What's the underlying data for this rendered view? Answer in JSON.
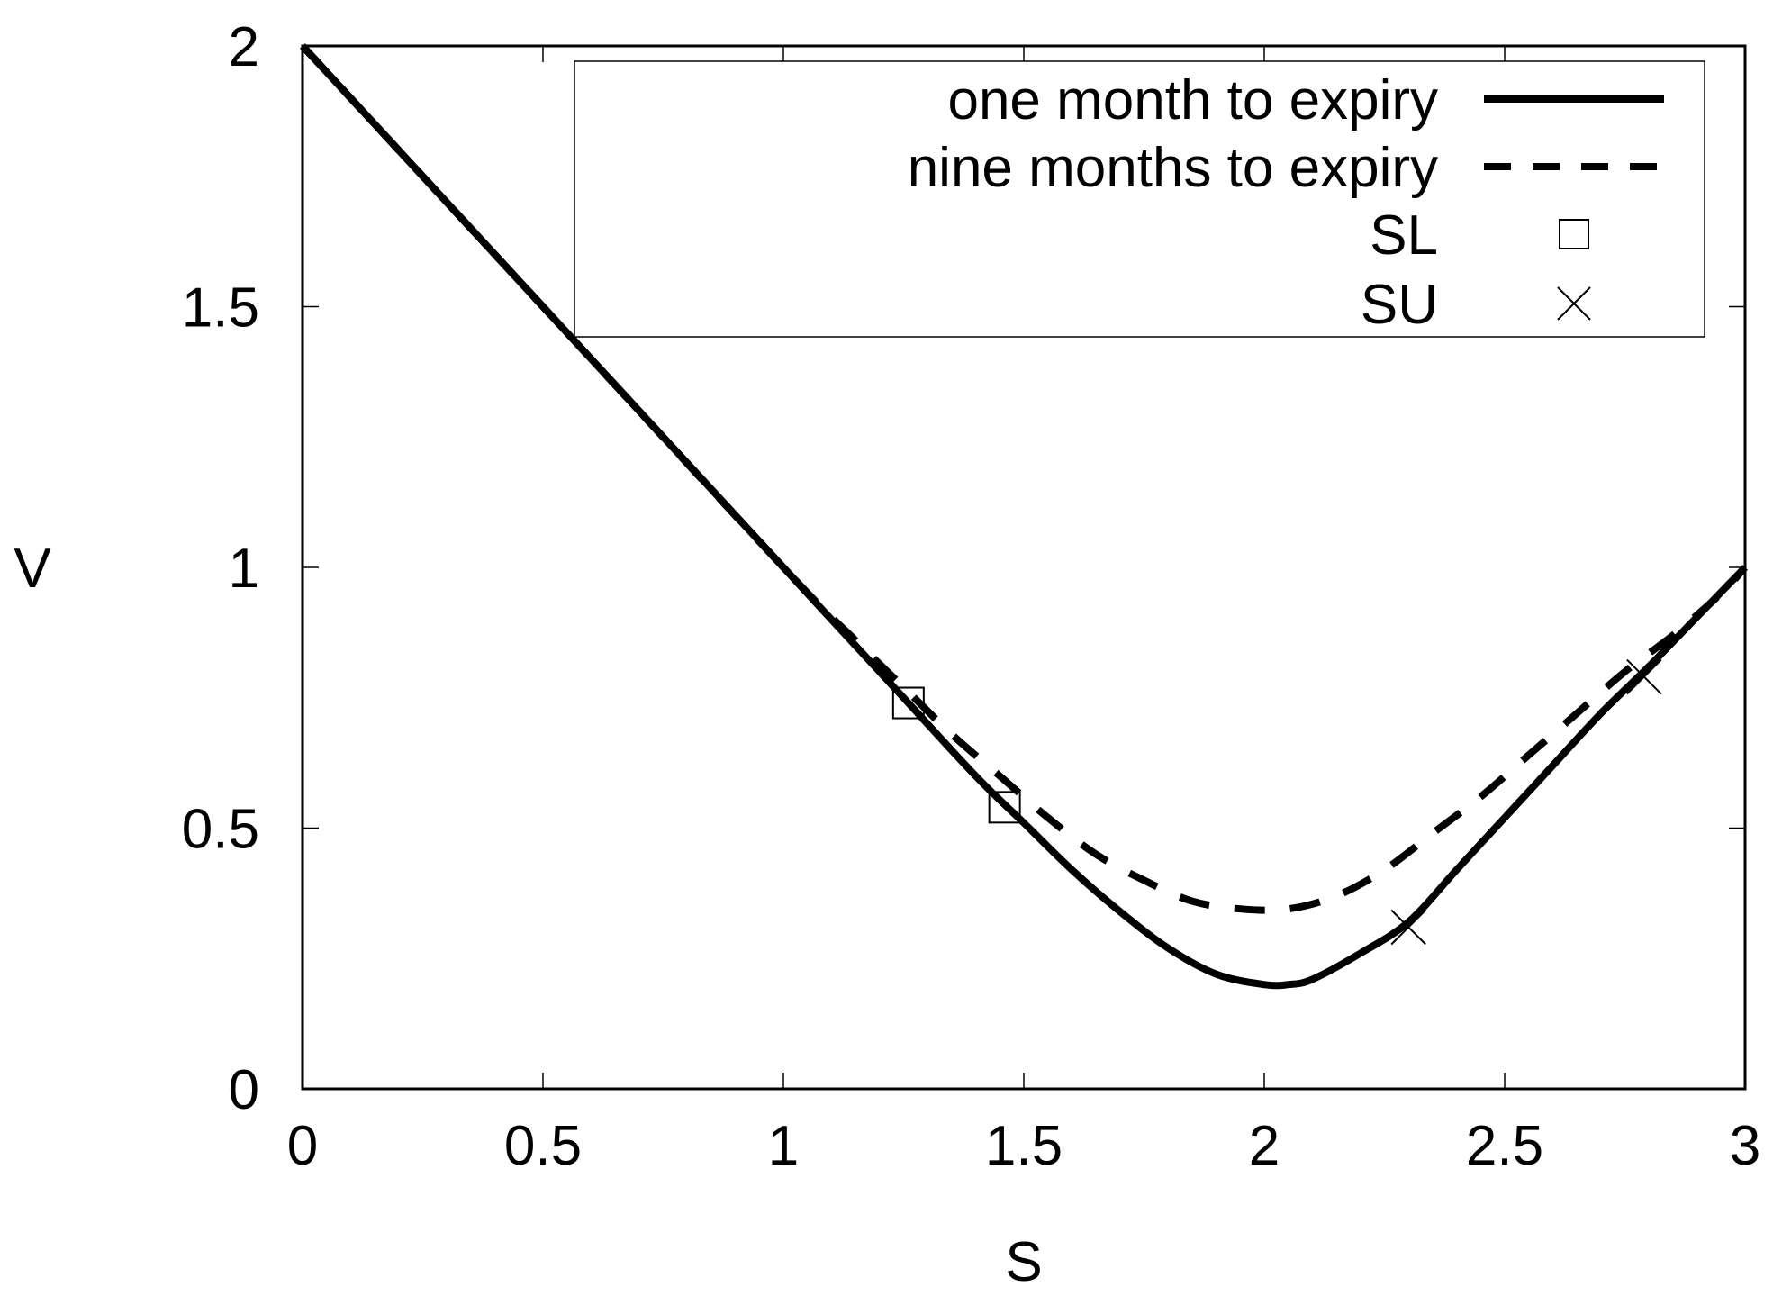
{
  "chart_data": {
    "type": "line",
    "xlabel": "S",
    "ylabel": "V",
    "xlim": [
      0,
      3
    ],
    "ylim": [
      0,
      2
    ],
    "xticks": [
      "0",
      "0.5",
      "1",
      "1.5",
      "2",
      "2.5",
      "3"
    ],
    "yticks": [
      "0",
      "0.5",
      "1",
      "1.5",
      "2"
    ],
    "grid": false,
    "legend_position": "top-right",
    "series": [
      {
        "name": "one month to expiry",
        "style": "solid",
        "color": "#000000",
        "points": [
          [
            0.0,
            2.0
          ],
          [
            0.5,
            1.5
          ],
          [
            1.0,
            1.0
          ],
          [
            1.25,
            0.75
          ],
          [
            1.4,
            0.6
          ],
          [
            1.5,
            0.51
          ],
          [
            1.6,
            0.42
          ],
          [
            1.7,
            0.34
          ],
          [
            1.8,
            0.27
          ],
          [
            1.9,
            0.22
          ],
          [
            2.0,
            0.2
          ],
          [
            2.05,
            0.2
          ],
          [
            2.1,
            0.21
          ],
          [
            2.2,
            0.26
          ],
          [
            2.3,
            0.32
          ],
          [
            2.4,
            0.42
          ],
          [
            2.5,
            0.52
          ],
          [
            2.6,
            0.62
          ],
          [
            2.7,
            0.72
          ],
          [
            2.8,
            0.81
          ],
          [
            2.9,
            0.905
          ],
          [
            3.0,
            1.0
          ]
        ]
      },
      {
        "name": "nine months to expiry",
        "style": "dashed",
        "color": "#000000",
        "points": [
          [
            0.0,
            2.0
          ],
          [
            0.5,
            1.5
          ],
          [
            1.0,
            1.0
          ],
          [
            1.15,
            0.86
          ],
          [
            1.25,
            0.77
          ],
          [
            1.35,
            0.68
          ],
          [
            1.45,
            0.6
          ],
          [
            1.55,
            0.52
          ],
          [
            1.65,
            0.45
          ],
          [
            1.75,
            0.4
          ],
          [
            1.85,
            0.36
          ],
          [
            1.95,
            0.345
          ],
          [
            2.05,
            0.345
          ],
          [
            2.15,
            0.37
          ],
          [
            2.25,
            0.42
          ],
          [
            2.35,
            0.49
          ],
          [
            2.45,
            0.56
          ],
          [
            2.55,
            0.64
          ],
          [
            2.65,
            0.72
          ],
          [
            2.75,
            0.8
          ],
          [
            2.85,
            0.87
          ],
          [
            2.95,
            0.95
          ],
          [
            3.0,
            1.0
          ]
        ]
      },
      {
        "name": "SL",
        "style": "markers",
        "marker": "square",
        "color": "#000000",
        "points": [
          [
            1.26,
            0.74
          ],
          [
            1.46,
            0.54
          ]
        ]
      },
      {
        "name": "SU",
        "style": "markers",
        "marker": "cross",
        "color": "#000000",
        "points": [
          [
            2.3,
            0.31
          ],
          [
            2.79,
            0.79
          ]
        ]
      }
    ]
  }
}
